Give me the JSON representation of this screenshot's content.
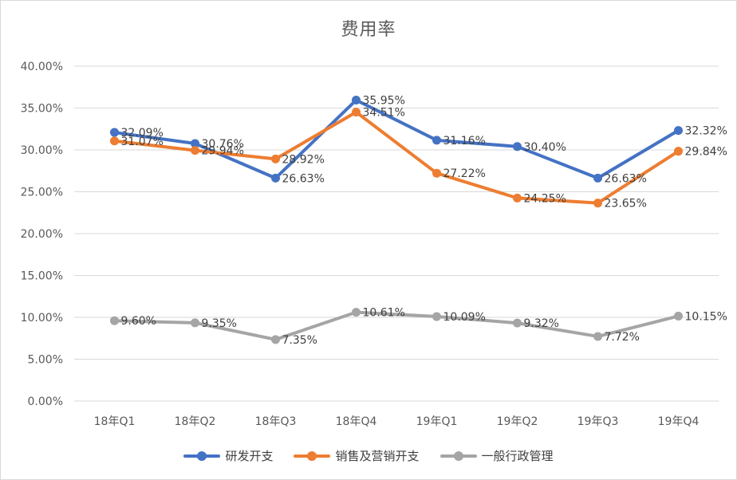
{
  "chart_data": {
    "type": "line",
    "title": "费用率",
    "categories": [
      "18年Q1",
      "18年Q2",
      "18年Q3",
      "18年Q4",
      "19年Q1",
      "19年Q2",
      "19年Q3",
      "19年Q4"
    ],
    "ylim": [
      0,
      40
    ],
    "yticks": [
      "0.00%",
      "5.00%",
      "10.00%",
      "15.00%",
      "20.00%",
      "25.00%",
      "30.00%",
      "35.00%",
      "40.00%"
    ],
    "grid": true,
    "legend_position": "bottom",
    "series": [
      {
        "name": "研发开支",
        "color": "#4472c4",
        "values": [
          32.09,
          30.76,
          26.63,
          35.95,
          31.16,
          30.4,
          26.63,
          32.32
        ],
        "labels": [
          "32.09%",
          "30.76%",
          "26.63%",
          "35.95%",
          "31.16%",
          "30.40%",
          "26.63%",
          "32.32%"
        ]
      },
      {
        "name": "销售及营销开支",
        "color": "#ed7d31",
        "values": [
          31.07,
          29.94,
          28.92,
          34.51,
          27.22,
          24.25,
          23.65,
          29.84
        ],
        "labels": [
          "31.07%",
          "29.94%",
          "28.92%",
          "34.51%",
          "27.22%",
          "24.25%",
          "23.65%",
          "29.84%"
        ]
      },
      {
        "name": "一般行政管理",
        "color": "#a5a5a5",
        "values": [
          9.6,
          9.35,
          7.35,
          10.61,
          10.09,
          9.32,
          7.72,
          10.15
        ],
        "labels": [
          "9.60%",
          "9.35%",
          "7.35%",
          "10.61%",
          "10.09%",
          "9.32%",
          "7.72%",
          "10.15%"
        ]
      }
    ]
  }
}
